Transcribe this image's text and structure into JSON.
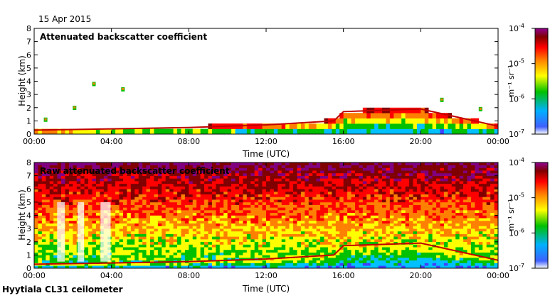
{
  "date_label": "15 Apr 2015",
  "footer_label": "Hyytiala CL31 ceilometer",
  "chart_data": [
    {
      "type": "heatmap",
      "title": "Attenuated backscatter coefficient",
      "xlabel": "Time (UTC)",
      "ylabel": "Height (km)",
      "x_tick_labels": [
        "00:00",
        "04:00",
        "08:00",
        "12:00",
        "16:00",
        "20:00",
        "00:00"
      ],
      "x_ticks_hours": [
        0,
        4,
        8,
        12,
        16,
        20,
        24
      ],
      "y_tick_labels": [
        "0",
        "1",
        "2",
        "3",
        "4",
        "5",
        "6",
        "7",
        "8"
      ],
      "ylim": [
        0,
        8
      ],
      "colorbar": {
        "scale": "log",
        "range": [
          1e-07,
          0.0001
        ],
        "tick_labels": [
          {
            "base": "10",
            "exp": "-7"
          },
          {
            "base": "10",
            "exp": "-6"
          },
          {
            "base": "10",
            "exp": "-5"
          },
          {
            "base": "10",
            "exp": "-4"
          }
        ],
        "units_label": "m⁻¹ sr⁻¹"
      },
      "features": {
        "boundary_layer_top_km": [
          [
            0,
            0.3
          ],
          [
            4,
            0.4
          ],
          [
            8,
            0.5
          ],
          [
            12,
            0.7
          ],
          [
            15.5,
            1.0
          ],
          [
            16,
            1.7
          ],
          [
            20,
            1.9
          ],
          [
            24,
            0.6
          ]
        ],
        "cloud_patches": [
          [
            0.5,
            1.1
          ],
          [
            2.0,
            2.0
          ],
          [
            3.0,
            3.8
          ],
          [
            4.5,
            3.4
          ],
          [
            21,
            2.6
          ],
          [
            23,
            1.9
          ]
        ]
      }
    },
    {
      "type": "heatmap",
      "title": "Raw attenuated backscatter coefficient",
      "xlabel": "Time (UTC)",
      "ylabel": "Height (km)",
      "x_tick_labels": [
        "00:00",
        "04:00",
        "08:00",
        "12:00",
        "16:00",
        "20:00",
        "00:00"
      ],
      "x_ticks_hours": [
        0,
        4,
        8,
        12,
        16,
        20,
        24
      ],
      "y_tick_labels": [
        "0",
        "1",
        "2",
        "3",
        "4",
        "5",
        "6",
        "7",
        "8"
      ],
      "ylim": [
        0,
        8
      ],
      "colorbar": {
        "scale": "log",
        "range": [
          1e-07,
          0.0001
        ],
        "tick_labels": [
          {
            "base": "10",
            "exp": "-7"
          },
          {
            "base": "10",
            "exp": "-6"
          },
          {
            "base": "10",
            "exp": "-5"
          },
          {
            "base": "10",
            "exp": "-4"
          }
        ],
        "units_label": "m⁻¹ sr⁻¹"
      }
    }
  ],
  "colors": {
    "colormap": [
      "#ffffff",
      "#4040ff",
      "#00c0ff",
      "#00c000",
      "#ffff00",
      "#ff8000",
      "#ff0000",
      "#800000",
      "#800080"
    ]
  }
}
